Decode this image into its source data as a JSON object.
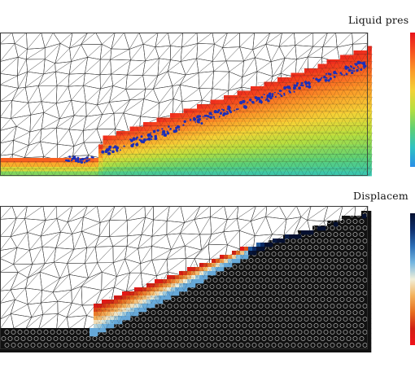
{
  "figure": {
    "top_panel": {
      "label": "Liquid pres",
      "colorbar_colors": [
        "#e8131c",
        "#f7531e",
        "#fb9a28",
        "#f4d236",
        "#b7df3f",
        "#5fd073",
        "#2ec3c3",
        "#2a8ee8"
      ]
    },
    "bottom_panel": {
      "label": "Displacem",
      "colorbar_colors": [
        "#051030",
        "#0d2f6e",
        "#2c6fb7",
        "#74b6e0",
        "#f1efd9",
        "#f3b15c",
        "#e76e1f",
        "#d11f14",
        "#f2131a"
      ]
    },
    "colors": {
      "mesh_line": "#2b2b2b",
      "dense_mesh": "#111111",
      "background": "#ffffff"
    }
  }
}
